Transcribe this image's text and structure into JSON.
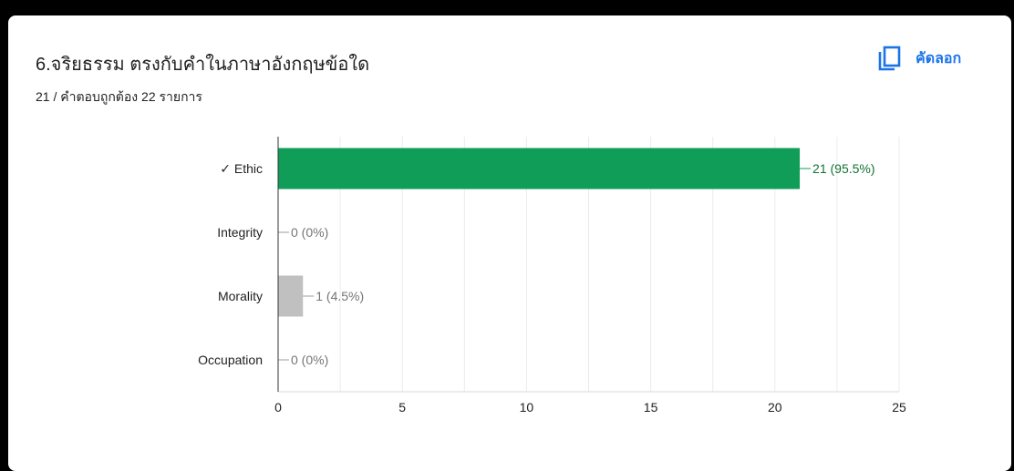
{
  "question": {
    "title": "6.จริยธรรม ตรงกับคำในภาษาอังกฤษข้อใด",
    "subtitle": "21 / คำตอบถูกต้อง 22 รายการ"
  },
  "actions": {
    "copy_label": "คัดลอก",
    "copy_icon": "copy-icon"
  },
  "colors": {
    "correct": "#0f9d58",
    "incorrect": "#c0c0c0",
    "accent": "#1a73e8"
  },
  "chart_data": {
    "type": "bar",
    "orientation": "horizontal",
    "categories": [
      "✓ Ethic",
      "Integrity",
      "Morality",
      "Occupation"
    ],
    "values": [
      21,
      0,
      1,
      0
    ],
    "data_labels": [
      "21 (95.5%)",
      "0 (0%)",
      "1 (4.5%)",
      "0 (0%)"
    ],
    "correct": [
      true,
      false,
      false,
      false
    ],
    "xlim": [
      0,
      25
    ],
    "xticks": [
      0,
      5,
      10,
      15,
      20,
      25
    ],
    "grid": true,
    "title": "",
    "xlabel": "",
    "ylabel": ""
  }
}
